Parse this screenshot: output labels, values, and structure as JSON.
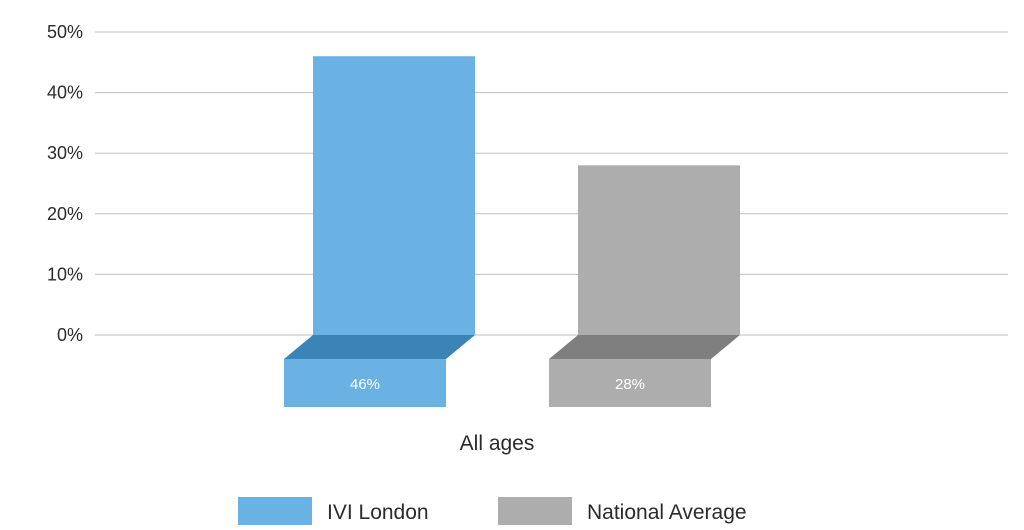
{
  "chart_data": {
    "type": "bar",
    "categories": [
      "All ages"
    ],
    "series": [
      {
        "name": "IVI London",
        "values": [
          46
        ],
        "value_label": "46%",
        "color": "#6ab2e4",
        "shade_color": "#3b84b7"
      },
      {
        "name": "National Average",
        "values": [
          28
        ],
        "value_label": "28%",
        "color": "#adadad",
        "shade_color": "#7f7f7f"
      }
    ],
    "ylim": [
      0,
      50
    ],
    "yticks": [
      {
        "value": 0,
        "label": "0%"
      },
      {
        "value": 10,
        "label": "10%"
      },
      {
        "value": 20,
        "label": "20%"
      },
      {
        "value": 30,
        "label": "30%"
      },
      {
        "value": 40,
        "label": "40%"
      },
      {
        "value": 50,
        "label": "50%"
      }
    ],
    "grid": true,
    "legend_position": "bottom",
    "gridline_color": "#bfbfbf"
  }
}
